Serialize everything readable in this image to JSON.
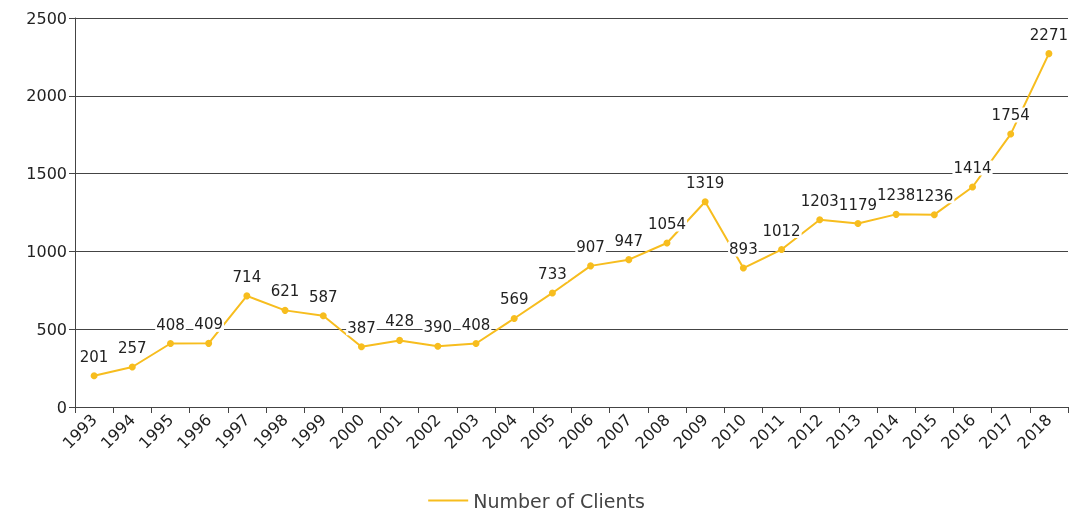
{
  "chart_data": {
    "type": "line",
    "categories": [
      "1993",
      "1994",
      "1995",
      "1996",
      "1997",
      "1998",
      "1999",
      "2000",
      "2001",
      "2002",
      "2003",
      "2004",
      "2005",
      "2006",
      "2007",
      "2008",
      "2009",
      "2010",
      "2011",
      "2012",
      "2013",
      "2014",
      "2015",
      "2016",
      "2017",
      "2018"
    ],
    "series": [
      {
        "name": "Number of Clients",
        "color": "#f7bd1e",
        "values": [
          201,
          257,
          408,
          409,
          714,
          621,
          587,
          387,
          428,
          390,
          408,
          569,
          733,
          907,
          947,
          1054,
          1319,
          893,
          1012,
          1203,
          1179,
          1238,
          1236,
          1414,
          1754,
          2271
        ]
      }
    ],
    "ylim": [
      0,
      2500
    ],
    "yticks": [
      0,
      500,
      1000,
      1500,
      2000,
      2500
    ],
    "grid": "y",
    "legend": "bottom",
    "marker": "circle",
    "line_style": "solid",
    "data_labels": true
  }
}
